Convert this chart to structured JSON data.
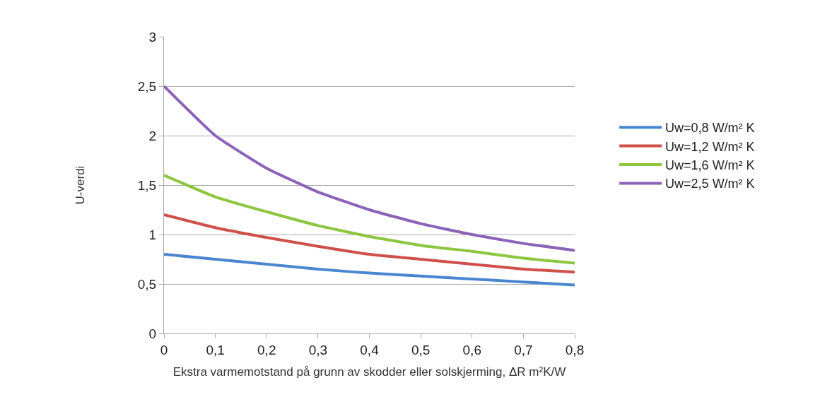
{
  "chart_data": {
    "type": "line",
    "xlabel": "Ekstra varmemotstand på grunn av skodder eller solskjerming, ΔR m²K/W",
    "ylabel": "U-verdi",
    "x": [
      0,
      0.1,
      0.2,
      0.3,
      0.4,
      0.5,
      0.6,
      0.7,
      0.8
    ],
    "series": [
      {
        "name": "Uw=0,8 W/m² K",
        "color": "#4a86cf",
        "values": [
          0.8,
          0.75,
          0.7,
          0.65,
          0.61,
          0.58,
          0.55,
          0.52,
          0.49
        ]
      },
      {
        "name": "Uw=1,2 W/m² K",
        "color": "#cf504a",
        "values": [
          1.2,
          1.07,
          0.97,
          0.88,
          0.8,
          0.75,
          0.7,
          0.65,
          0.62
        ]
      },
      {
        "name": "Uw=1,6 W/m² K",
        "color": "#8cc63f",
        "values": [
          1.6,
          1.38,
          1.23,
          1.09,
          0.98,
          0.89,
          0.83,
          0.76,
          0.71
        ]
      },
      {
        "name": "Uw=2,5 W/m² K",
        "color": "#8a63b8",
        "values": [
          2.5,
          2.0,
          1.67,
          1.43,
          1.25,
          1.11,
          1.0,
          0.91,
          0.84
        ]
      }
    ],
    "xlim": [
      0,
      0.8
    ],
    "xticks": [
      0,
      {
        "value": 0.1,
        "label": "0,1"
      },
      {
        "value": 0.2,
        "label": "0,2"
      },
      {
        "value": 0.3,
        "label": "0,3"
      },
      {
        "value": 0.4,
        "label": "0,4"
      },
      {
        "value": 0.5,
        "label": "0,5"
      },
      {
        "value": 0.6,
        "label": "0,6"
      },
      {
        "value": 0.7,
        "label": "0,7"
      },
      {
        "value": 0.8,
        "label": "0,8"
      }
    ],
    "ylim": [
      0,
      3
    ],
    "yticks": [
      0,
      {
        "value": 0.5,
        "label": "0,5"
      },
      1,
      {
        "value": 1.5,
        "label": "1,5"
      },
      2,
      {
        "value": 2.5,
        "label": "2,5"
      },
      3
    ],
    "grid": "y",
    "legend": "right",
    "marker": "none",
    "line_style": "solid"
  }
}
